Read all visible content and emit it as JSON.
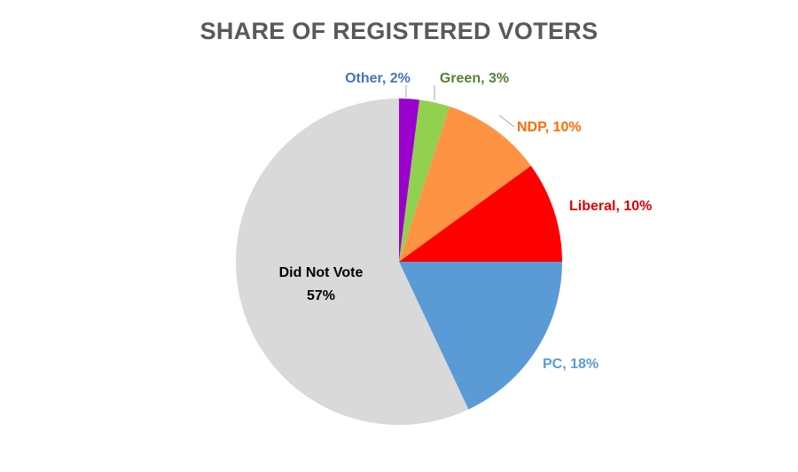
{
  "chart_data": {
    "type": "pie",
    "title": "SHARE OF REGISTERED VOTERS",
    "start_angle_deg": 0,
    "direction": "clockwise",
    "slices": [
      {
        "name": "Other",
        "value": 2,
        "label": "Other, 2%",
        "color": "#9900CC",
        "label_color": "#4472C4"
      },
      {
        "name": "Green",
        "value": 3,
        "label": "Green, 3%",
        "color": "#92D050",
        "label_color": "#548235"
      },
      {
        "name": "NDP",
        "value": 10,
        "label": "NDP, 10%",
        "color": "#FF9344",
        "label_color": "#FF6A00"
      },
      {
        "name": "Liberal",
        "value": 10,
        "label": "Liberal, 10%",
        "color": "#FF0000",
        "label_color": "#E00000"
      },
      {
        "name": "PC",
        "value": 18,
        "label": "PC, 18%",
        "color": "#5B9BD5",
        "label_color": "#5B9BD5"
      },
      {
        "name": "Did Not Vote",
        "value": 57,
        "label": "Did Not Vote",
        "label2": "57%",
        "color": "#D9D9D9",
        "label_color": "#000000"
      }
    ]
  }
}
